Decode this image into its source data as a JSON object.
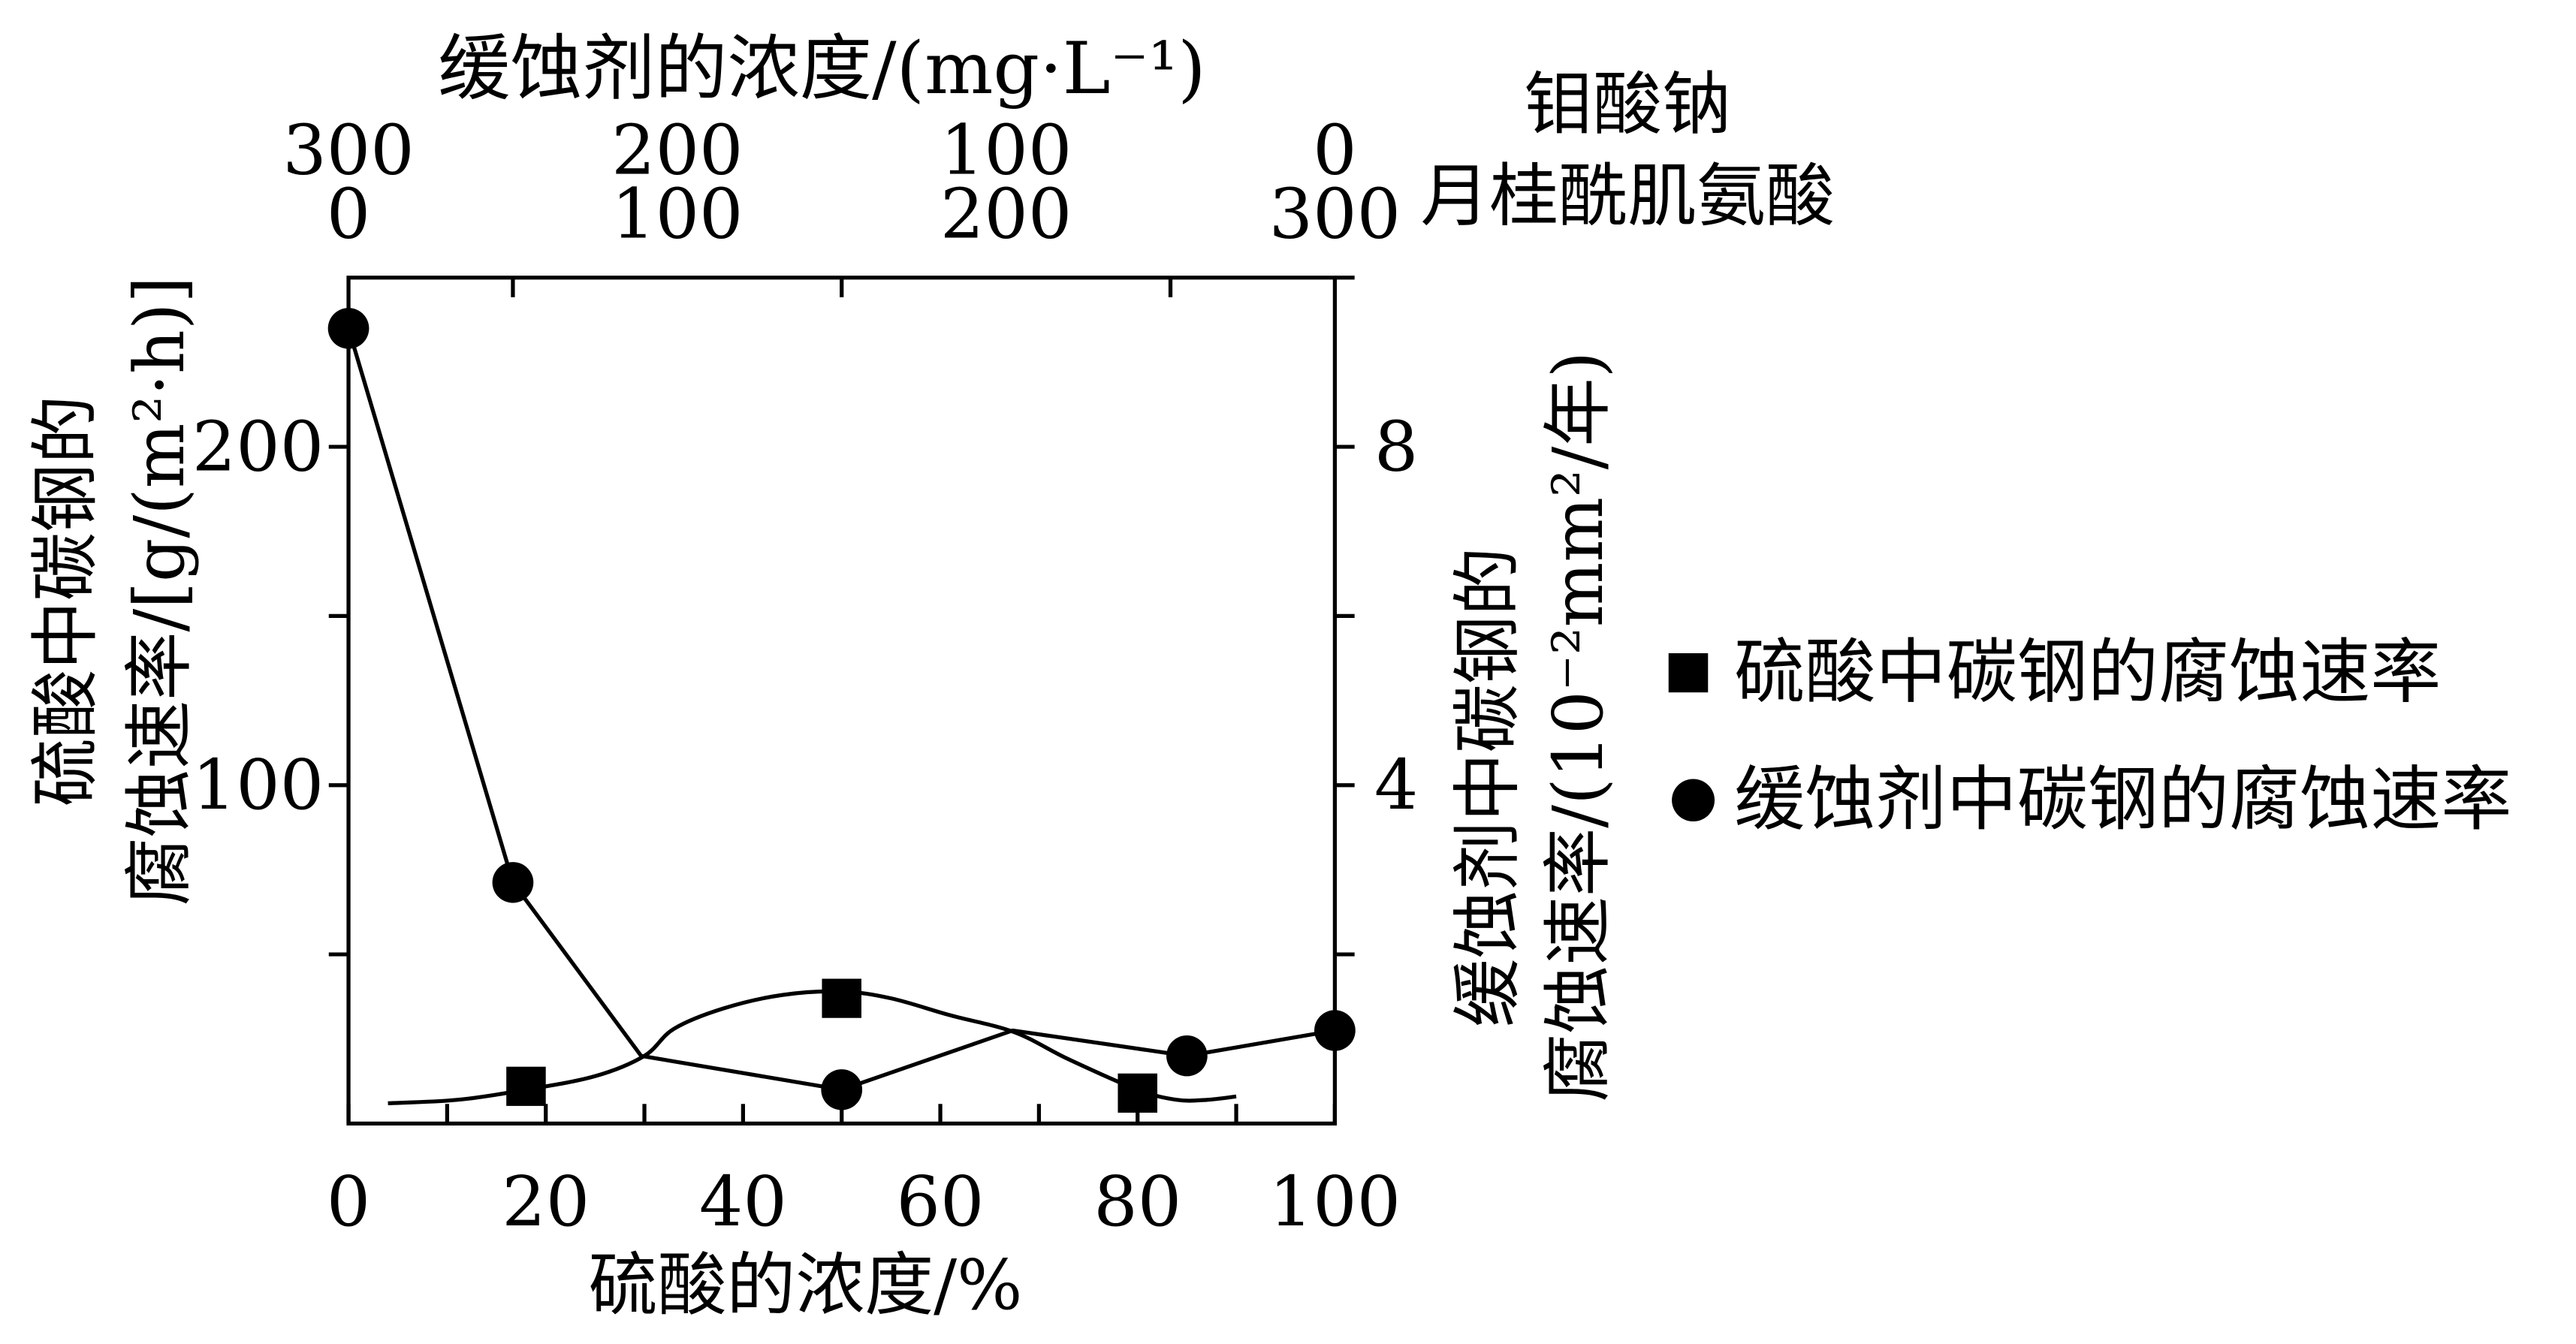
{
  "chart_data": {
    "type": "line",
    "grid": false,
    "legend": {
      "position": "right"
    },
    "x_top": {
      "label": "缓蚀剂的浓度/(mg·L⁻¹)",
      "range": [
        0,
        300
      ],
      "tick_values": [
        0,
        100,
        200,
        300
      ],
      "minor_tick_values": [
        50,
        150,
        250
      ],
      "rows": [
        {
          "name": "钼酸钠",
          "tick_labels": [
            "300",
            "200",
            "100",
            "0"
          ]
        },
        {
          "name": "月桂酰肌氨酸",
          "tick_labels": [
            "0",
            "100",
            "200",
            "300"
          ]
        }
      ]
    },
    "x_bottom": {
      "label": "硫酸的浓度/%",
      "range": [
        0,
        100
      ],
      "tick_values": [
        0,
        20,
        40,
        60,
        80,
        100
      ],
      "tick_labels": [
        "0",
        "20",
        "40",
        "60",
        "80",
        "100"
      ],
      "minor_tick_values": [
        10,
        30,
        50,
        70,
        90
      ]
    },
    "y_left": {
      "label_lines": [
        "硫酸中碳钢的",
        "腐蚀速率/[g/(m²·h)]"
      ],
      "range": [
        0,
        250
      ],
      "tick_values": [
        100,
        200
      ],
      "tick_labels": [
        "100",
        "200"
      ],
      "minor_tick_values": [
        50,
        150
      ]
    },
    "y_right": {
      "label_lines": [
        "缓蚀剂中碳钢的",
        "腐蚀速率/(10⁻²mm²/年)"
      ],
      "range": [
        0,
        10
      ],
      "tick_values": [
        4,
        8
      ],
      "tick_labels": [
        "4",
        "8"
      ],
      "minor_tick_values": [
        2,
        6,
        10
      ]
    },
    "series": [
      {
        "name": "硫酸中碳钢的腐蚀速率",
        "marker": "square",
        "color": "#000000",
        "x_axis": "bottom",
        "y_axis": "left",
        "x": [
          18,
          50,
          80
        ],
        "y": [
          11,
          37,
          9
        ],
        "line": "smooth",
        "line_points": [
          [
            4,
            6
          ],
          [
            11,
            7
          ],
          [
            18,
            10
          ],
          [
            25,
            14
          ],
          [
            30,
            20
          ],
          [
            33,
            28
          ],
          [
            38,
            34
          ],
          [
            44,
            38
          ],
          [
            50,
            39
          ],
          [
            55,
            37
          ],
          [
            61,
            32
          ],
          [
            67.5,
            27
          ],
          [
            73,
            19
          ],
          [
            80,
            10
          ],
          [
            84,
            7
          ],
          [
            87,
            7
          ],
          [
            90,
            8
          ]
        ]
      },
      {
        "name": "缓蚀剂中碳钢的腐蚀速率",
        "marker": "circle",
        "color": "#000000",
        "x_axis": "top",
        "y_axis": "right",
        "x": [
          0,
          50,
          150,
          255,
          300
        ],
        "y": [
          9.4,
          2.85,
          0.4,
          0.8,
          1.1
        ],
        "line": "straight",
        "line_points": [
          [
            0,
            9.4
          ],
          [
            50,
            2.85
          ],
          [
            89,
            0.8
          ],
          [
            150,
            0.4
          ],
          [
            202,
            1.1
          ],
          [
            255,
            0.8
          ],
          [
            300,
            1.1
          ]
        ]
      }
    ]
  }
}
